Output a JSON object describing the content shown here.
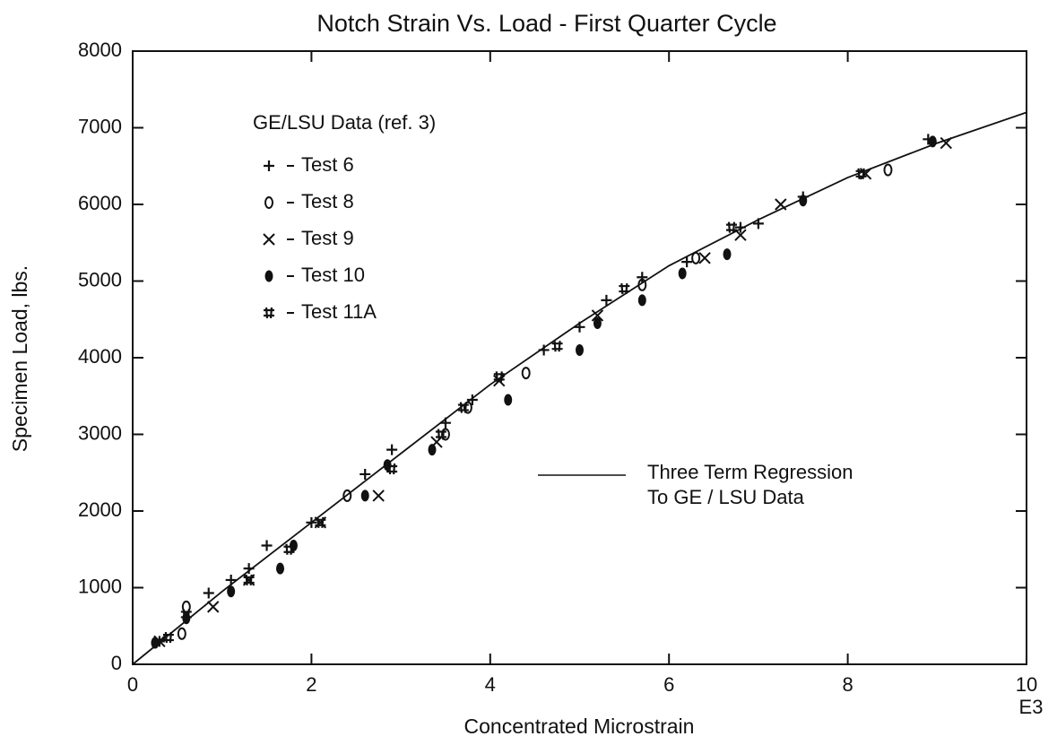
{
  "chart_data": {
    "type": "scatter",
    "title": "Notch Strain Vs. Load - First Quarter Cycle",
    "xlabel": "Concentrated Microstrain",
    "x_multiplier": "E3",
    "ylabel": "Specimen Load, lbs.",
    "xlim": [
      0,
      10
    ],
    "xticks": [
      0,
      2,
      4,
      6,
      8,
      10
    ],
    "ylim": [
      0,
      8000
    ],
    "yticks": [
      0,
      1000,
      2000,
      3000,
      4000,
      5000,
      6000,
      7000,
      8000
    ],
    "legend_title": "GE/LSU Data (ref. 3)",
    "series": [
      {
        "name": "Test 6",
        "marker": "plus",
        "color": "#111111",
        "x": [
          0.3,
          0.85,
          1.1,
          1.3,
          1.5,
          2.0,
          2.6,
          2.9,
          3.5,
          3.8,
          4.6,
          5.0,
          5.3,
          5.7,
          6.2,
          6.8,
          7.0,
          7.5,
          8.9
        ],
        "values": [
          300,
          930,
          1100,
          1250,
          1550,
          1850,
          2480,
          2800,
          3150,
          3450,
          4100,
          4400,
          4750,
          5050,
          5250,
          5700,
          5750,
          6100,
          6850
        ]
      },
      {
        "name": "Test 8",
        "marker": "circle",
        "color": "#111111",
        "x": [
          0.55,
          0.6,
          2.4,
          3.5,
          3.75,
          4.4,
          5.7,
          6.3,
          8.45
        ],
        "values": [
          400,
          750,
          2200,
          3000,
          3350,
          3800,
          4950,
          5300,
          6450
        ]
      },
      {
        "name": "Test 9",
        "marker": "cross",
        "color": "#111111",
        "x": [
          0.3,
          0.9,
          1.3,
          2.1,
          2.75,
          3.4,
          4.1,
          5.2,
          6.4,
          6.8,
          7.25,
          8.2,
          9.1
        ],
        "values": [
          300,
          750,
          1100,
          1850,
          2200,
          2900,
          3700,
          4550,
          5300,
          5600,
          6000,
          6400,
          6800
        ]
      },
      {
        "name": "Test 10",
        "marker": "dot",
        "color": "#111111",
        "x": [
          0.25,
          0.6,
          1.1,
          1.65,
          1.8,
          2.6,
          2.85,
          3.35,
          4.2,
          5.0,
          5.2,
          5.7,
          6.15,
          6.65,
          7.5,
          8.95
        ],
        "values": [
          280,
          600,
          950,
          1250,
          1550,
          2200,
          2600,
          2800,
          3450,
          4100,
          4450,
          4750,
          5100,
          5350,
          6050,
          6820
        ]
      },
      {
        "name": "Test 11A",
        "marker": "star",
        "color": "#111111",
        "x": [
          0.4,
          0.6,
          1.3,
          1.75,
          2.1,
          2.9,
          3.45,
          3.7,
          4.1,
          4.75,
          5.5,
          6.7,
          8.15
        ],
        "values": [
          350,
          650,
          1100,
          1500,
          1850,
          2550,
          3000,
          3350,
          3750,
          4150,
          4900,
          5700,
          6400
        ]
      }
    ],
    "regression": {
      "color": "#111111",
      "x": [
        0,
        1,
        2,
        3,
        4,
        5,
        6,
        7,
        8,
        9,
        10
      ],
      "values": [
        0,
        950,
        1850,
        2750,
        3650,
        4450,
        5200,
        5800,
        6350,
        6800,
        7200
      ]
    },
    "annotation": [
      "Three Term Regression",
      "To GE / LSU Data"
    ]
  }
}
